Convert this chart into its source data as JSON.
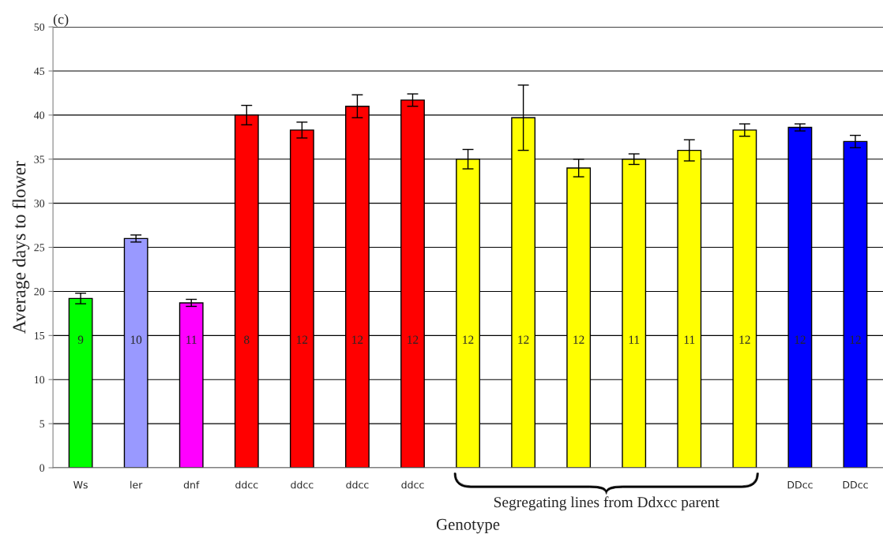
{
  "chart_data": {
    "type": "bar",
    "title": "(c)",
    "xlabel": "Genotype",
    "ylabel": "Average days to flower",
    "categories": [
      "Ws",
      "ler",
      "dnf",
      "ddcc",
      "ddcc",
      "ddcc",
      "ddcc",
      null,
      null,
      null,
      null,
      null,
      null,
      "DDcc",
      "DDcc"
    ],
    "values": [
      19.2,
      26.0,
      18.7,
      40.0,
      38.3,
      41.0,
      41.7,
      35.0,
      39.7,
      34.0,
      35.0,
      36.0,
      38.3,
      38.6,
      37.0
    ],
    "errors": [
      0.6,
      0.4,
      0.4,
      1.1,
      0.9,
      1.3,
      0.7,
      1.1,
      3.7,
      1.0,
      0.6,
      1.2,
      0.7,
      0.4,
      0.7
    ],
    "colors": [
      "#00ff00",
      "#9999ff",
      "#ff00ff",
      "#ff0000",
      "#ff0000",
      "#ff0000",
      "#ff0000",
      "#ffff00",
      "#ffff00",
      "#ffff00",
      "#ffff00",
      "#ffff00",
      "#ffff00",
      "#0000ff",
      "#0000ff"
    ],
    "ylim": [
      0,
      50
    ],
    "yticks": [
      0,
      5,
      10,
      15,
      20,
      25,
      30,
      35,
      40,
      45,
      50
    ],
    "grid": "y",
    "annotations": [
      "9",
      "10",
      "11",
      "8",
      "12",
      "12",
      "12",
      "12",
      "12",
      "12",
      "11",
      "11",
      "12",
      "12",
      "12",
      "Segregating lines from Ddxcc parent"
    ]
  }
}
